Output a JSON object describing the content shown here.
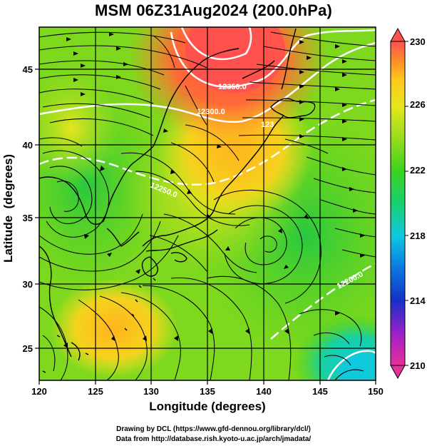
{
  "title": "MSM 06Z31Aug2024 (200.0hPa)",
  "axes": {
    "xlabel": "Longitude (degrees)",
    "ylabel": "Latitude  (degrees)",
    "xticks": [
      "120",
      "125",
      "130",
      "135",
      "140",
      "145",
      "150"
    ],
    "yticks": [
      "25",
      "30",
      "35",
      "40",
      "45"
    ],
    "xlim": [
      120,
      150
    ],
    "ylim": [
      22.5,
      47.5
    ]
  },
  "colorbar": {
    "labels": [
      "230",
      "226",
      "222",
      "218",
      "214",
      "210"
    ],
    "values": [
      230,
      226,
      222,
      218,
      214,
      210
    ],
    "range": [
      210,
      230
    ],
    "colors": [
      "#e8309a",
      "#9b20c8",
      "#1530c8",
      "#0a78e0",
      "#10c8e0",
      "#18d070",
      "#3cd21e",
      "#96dc1e",
      "#e6e61e",
      "#ffc81e",
      "#ff8c28",
      "#ff5050"
    ]
  },
  "contour_labels": [
    "12350.0",
    "12300.0",
    "123",
    "12250.0",
    "12200.0"
  ],
  "credits": [
    "Drawing by DCL (https://www.gfd-dennou.org/library/dcl/)",
    "Data from http://database.rish.kyoto-u.ac.jp/arch/jmadata/"
  ]
}
